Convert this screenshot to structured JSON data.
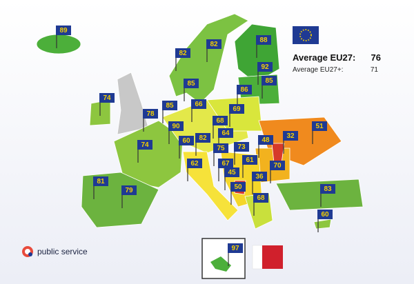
{
  "summary": {
    "eu27_label": "Average EU27:",
    "eu27_value": 76,
    "eu27plus_label": "Average EU27+:",
    "eu27plus_value": 71
  },
  "brand": "public service",
  "scores": [
    89,
    82,
    82,
    88,
    92,
    85,
    86,
    85,
    74,
    78,
    85,
    66,
    69,
    68,
    90,
    64,
    82,
    60,
    48,
    32,
    51,
    74,
    75,
    73,
    67,
    61,
    70,
    62,
    45,
    36,
    50,
    68,
    81,
    79,
    83,
    60
  ],
  "inset_score": 97
}
